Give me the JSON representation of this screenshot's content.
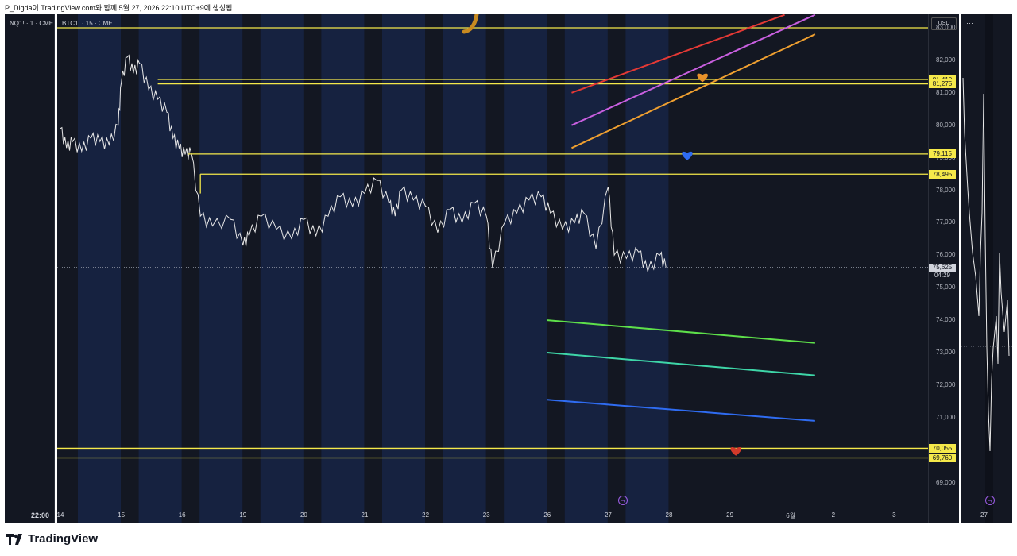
{
  "header": {
    "caption": "P_Digda이 TradingView.com와 함께 5월 27, 2026 22:10 UTC+9에 생성됨"
  },
  "left_panel": {
    "symbol": "NQ1! · 1 · CME",
    "time_label": "22:00"
  },
  "main_panel": {
    "symbol": "BTC1! · 15 · CME",
    "currency": "USD",
    "price_tag": {
      "price": "75,625",
      "countdown": "04:29"
    }
  },
  "right_panel": {
    "menu": "···",
    "x_label": "27"
  },
  "brand": {
    "name": "TradingView",
    "logo_icon": "tradingview-logo-icon"
  },
  "colors": {
    "background": "#131722",
    "band": "#162240",
    "price": "#e8e8e8",
    "level": "#f5e94a",
    "red": "#e53935",
    "violet": "#c95fe0",
    "orange": "#f0a030",
    "green": "#5ee04a",
    "teal": "#3ed6a8",
    "blue": "#2f6cf2"
  },
  "chart_data": {
    "type": "line",
    "title": "",
    "ylim": [
      68500,
      83500
    ],
    "y_ticks": [
      69000,
      70000,
      71000,
      72000,
      73000,
      74000,
      75000,
      76000,
      77000,
      78000,
      79000,
      80000,
      81000,
      82000,
      83000
    ],
    "y_tick_labels": [
      "69,000",
      "70,000",
      "71,000",
      "72,000",
      "73,000",
      "74,000",
      "75,000",
      "76,000",
      "77,000",
      "78,000",
      "79,000",
      "80,000",
      "81,000",
      "82,000",
      "83,000"
    ],
    "x_labels": [
      {
        "label": "14",
        "day": 0
      },
      {
        "label": "15",
        "day": 1
      },
      {
        "label": "16",
        "day": 2
      },
      {
        "label": "19",
        "day": 3
      },
      {
        "label": "20",
        "day": 4
      },
      {
        "label": "21",
        "day": 5
      },
      {
        "label": "22",
        "day": 6
      },
      {
        "label": "23",
        "day": 7
      },
      {
        "label": "26",
        "day": 8
      },
      {
        "label": "27",
        "day": 9
      },
      {
        "label": "28",
        "day": 10
      },
      {
        "label": "29",
        "day": 11
      },
      {
        "label": "6월",
        "day": 12
      },
      {
        "label": "2",
        "day": 12.7
      },
      {
        "label": "3",
        "day": 13.7
      }
    ],
    "price_series": {
      "name": "",
      "points": [
        [
          0,
          79900
        ],
        [
          0.1,
          79300
        ],
        [
          0.2,
          79500
        ],
        [
          0.35,
          79200
        ],
        [
          0.5,
          79600
        ],
        [
          0.65,
          79500
        ],
        [
          0.8,
          79400
        ],
        [
          0.95,
          80000
        ],
        [
          1.0,
          81300
        ],
        [
          1.1,
          82100
        ],
        [
          1.2,
          81600
        ],
        [
          1.3,
          81900
        ],
        [
          1.45,
          81100
        ],
        [
          1.6,
          80800
        ],
        [
          1.75,
          80400
        ],
        [
          1.85,
          79600
        ],
        [
          1.95,
          79300
        ],
        [
          2.05,
          79100
        ],
        [
          2.15,
          79150
        ],
        [
          2.3,
          77200
        ],
        [
          2.5,
          76900
        ],
        [
          2.8,
          77100
        ],
        [
          3.0,
          76300
        ],
        [
          3.1,
          76600
        ],
        [
          3.3,
          77200
        ],
        [
          3.55,
          76800
        ],
        [
          3.8,
          76500
        ],
        [
          4.0,
          77100
        ],
        [
          4.2,
          76600
        ],
        [
          4.4,
          77200
        ],
        [
          4.6,
          77800
        ],
        [
          4.8,
          77500
        ],
        [
          5.0,
          77900
        ],
        [
          5.2,
          78300
        ],
        [
          5.4,
          77600
        ],
        [
          5.5,
          77200
        ],
        [
          5.6,
          78000
        ],
        [
          5.8,
          77700
        ],
        [
          6.0,
          77500
        ],
        [
          6.2,
          76700
        ],
        [
          6.4,
          77400
        ],
        [
          6.6,
          77000
        ],
        [
          6.8,
          77600
        ],
        [
          7.0,
          77200
        ],
        [
          7.1,
          75600
        ],
        [
          7.3,
          77000
        ],
        [
          7.5,
          77300
        ],
        [
          7.7,
          77700
        ],
        [
          7.9,
          77800
        ],
        [
          8.05,
          77300
        ],
        [
          8.25,
          76800
        ],
        [
          8.45,
          77000
        ],
        [
          8.6,
          77300
        ],
        [
          8.8,
          76200
        ],
        [
          9.0,
          78100
        ],
        [
          9.1,
          76000
        ],
        [
          9.3,
          75900
        ],
        [
          9.5,
          76100
        ],
        [
          9.65,
          75500
        ],
        [
          9.85,
          76000
        ],
        [
          9.95,
          75625
        ]
      ]
    },
    "horizontal_levels": [
      {
        "name": "top",
        "value": 83000,
        "label": ""
      },
      {
        "name": "level-81410",
        "value": 81410,
        "label": "81,410"
      },
      {
        "name": "level-81275",
        "value": 81275,
        "label": "81,275"
      },
      {
        "name": "level-79115",
        "value": 79115,
        "label": "79,115"
      },
      {
        "name": "level-78495",
        "value": 78495,
        "label": "78,495"
      },
      {
        "name": "level-70055",
        "value": 70055,
        "label": "70,055"
      },
      {
        "name": "level-69760",
        "value": 69760,
        "label": "69,760"
      }
    ],
    "trend_lines": [
      {
        "name": "red",
        "color": "#e53935",
        "x1": 8.4,
        "y1": 81000,
        "x2": 11.9,
        "y2": 83400
      },
      {
        "name": "violet",
        "color": "#c95fe0",
        "x1": 8.4,
        "y1": 80000,
        "x2": 12.4,
        "y2": 83400
      },
      {
        "name": "orange",
        "color": "#f0a030",
        "x1": 8.4,
        "y1": 79300,
        "x2": 12.4,
        "y2": 82800
      },
      {
        "name": "green",
        "color": "#5ee04a",
        "x1": 8.0,
        "y1": 74000,
        "x2": 12.4,
        "y2": 73300
      },
      {
        "name": "teal",
        "color": "#3ed6a8",
        "x1": 8.0,
        "y1": 73000,
        "x2": 12.4,
        "y2": 72300
      },
      {
        "name": "blue",
        "color": "#2f6cf2",
        "x1": 8.0,
        "y1": 71550,
        "x2": 12.4,
        "y2": 70900
      }
    ],
    "hearts": [
      {
        "name": "orange-heart",
        "color": "#e8922a",
        "x": 10.55,
        "y": 81500
      },
      {
        "name": "blue-heart",
        "color": "#2f6cf2",
        "x": 10.3,
        "y": 79100
      },
      {
        "name": "red-heart",
        "color": "#d23a2a",
        "x": 11.1,
        "y": 70000
      }
    ],
    "grid": false,
    "legend": "none"
  }
}
